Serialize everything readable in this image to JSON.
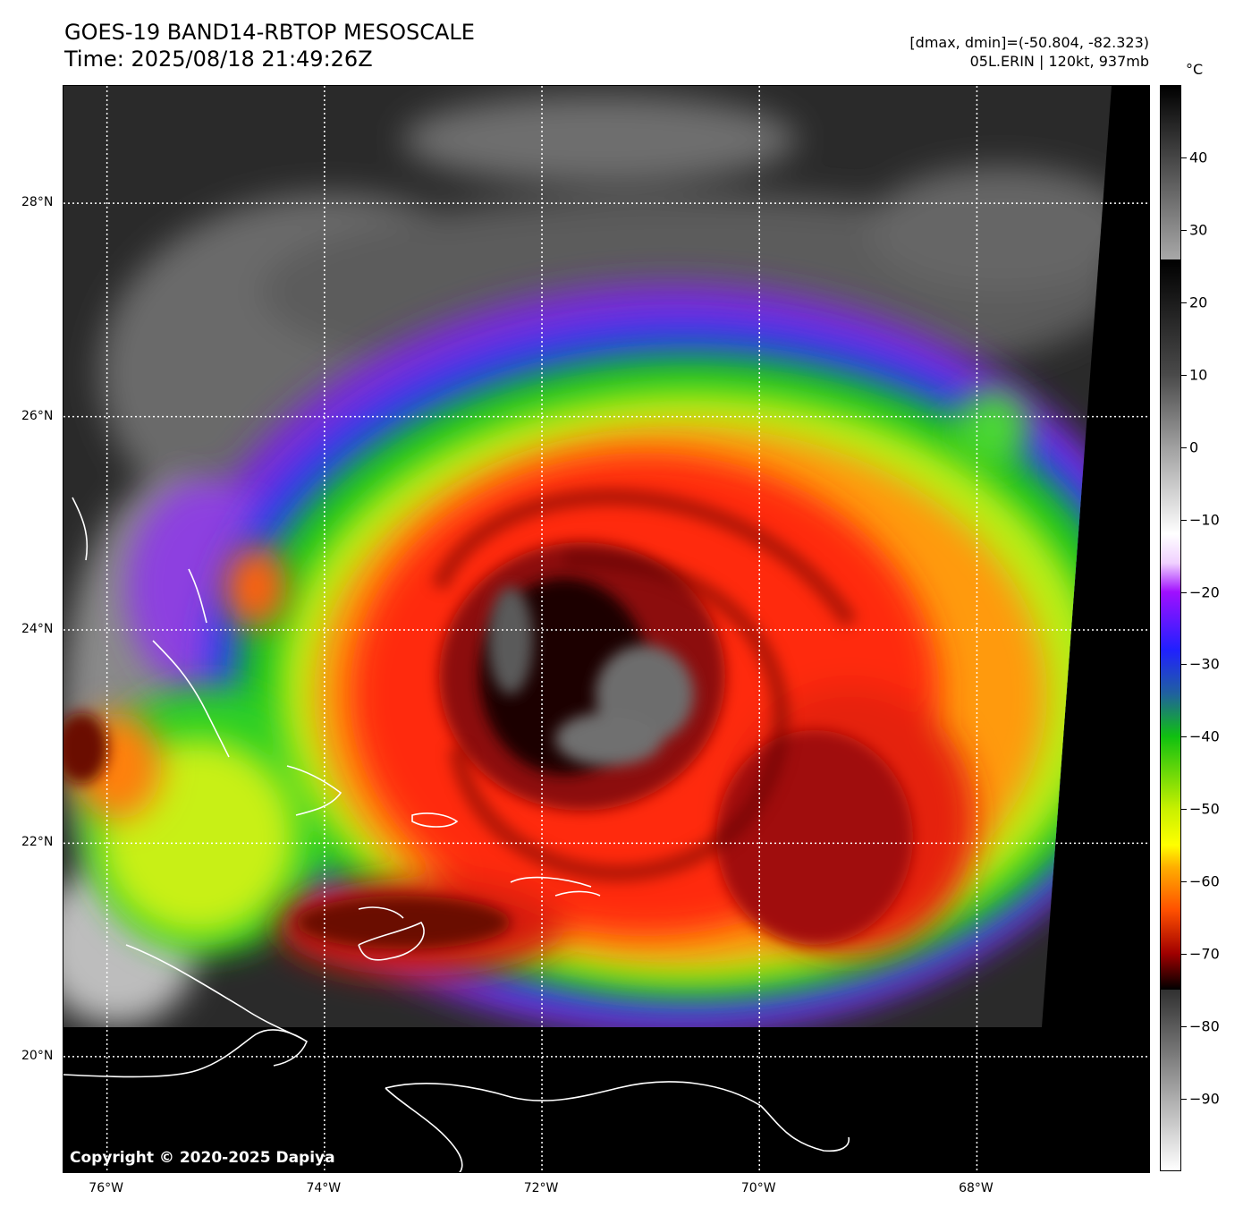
{
  "header": {
    "title_line1": "GOES-19 BAND14-RBTOP MESOSCALE",
    "title_line2": "Time: 2025/08/18 21:49:26Z",
    "range_line": "[dmax, dmin]=(-50.804, -82.323)",
    "storm_line": "05L.ERIN | 120kt, 937mb"
  },
  "colorbar": {
    "unit": "°C",
    "ticks": [
      {
        "label": "40",
        "value": 40
      },
      {
        "label": "30",
        "value": 30
      },
      {
        "label": "20",
        "value": 20
      },
      {
        "label": "10",
        "value": 10
      },
      {
        "label": "0",
        "value": 0
      },
      {
        "label": "−10",
        "value": -10
      },
      {
        "label": "−20",
        "value": -20
      },
      {
        "label": "−30",
        "value": -30
      },
      {
        "label": "−40",
        "value": -40
      },
      {
        "label": "−50",
        "value": -50
      },
      {
        "label": "−60",
        "value": -60
      },
      {
        "label": "−70",
        "value": -70
      },
      {
        "label": "−80",
        "value": -80
      },
      {
        "label": "−90",
        "value": -90
      }
    ],
    "range": [
      -100,
      50
    ]
  },
  "map": {
    "lat_labels": [
      {
        "label": "28°N",
        "lat": 28
      },
      {
        "label": "26°N",
        "lat": 26
      },
      {
        "label": "24°N",
        "lat": 24
      },
      {
        "label": "22°N",
        "lat": 22
      },
      {
        "label": "20°N",
        "lat": 20
      }
    ],
    "lon_labels": [
      {
        "label": "76°W",
        "lon": -76
      },
      {
        "label": "74°W",
        "lon": -74
      },
      {
        "label": "72°W",
        "lon": -72
      },
      {
        "label": "70°W",
        "lon": -70
      },
      {
        "label": "68°W",
        "lon": -68
      }
    ],
    "extent": {
      "lon_min": -76.4,
      "lon_max": -66.4,
      "lat_min": 18.9,
      "lat_max": 29.1
    },
    "storm_center": {
      "lat": 23.6,
      "lon": -71.1
    }
  },
  "footer": {
    "copyright": "Copyright © 2020-2025 Dapiya"
  }
}
